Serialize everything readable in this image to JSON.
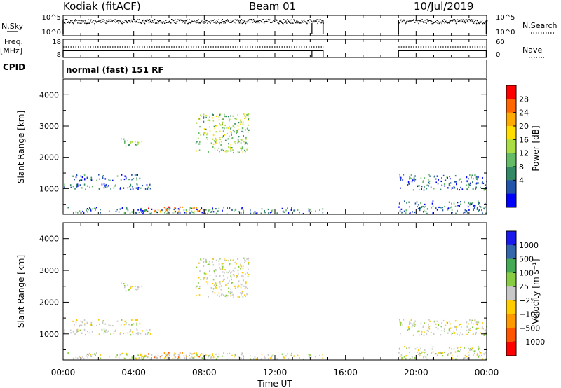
{
  "header": {
    "station": "Kodiak (fitACF)",
    "beam": "Beam 01",
    "date": "10/Jul/2019"
  },
  "status_panels": {
    "nsky": {
      "label": "N.Sky",
      "ticks": [
        "10^5",
        "10^0"
      ]
    },
    "nsearch": {
      "label": "N.Search",
      "ticks": [
        "10^5",
        "10^0"
      ]
    },
    "freq": {
      "label_line1": "Freq.",
      "label_line2": "[MHz]",
      "ticks": [
        "18",
        "8"
      ]
    },
    "nave": {
      "label": "Nave",
      "ticks": [
        "60",
        "0"
      ]
    },
    "cpid": {
      "label": "CPID",
      "text": "normal (fast) 151 RF"
    }
  },
  "chart_data": [
    {
      "type": "heatmap",
      "name": "power",
      "ylabel": "Slant Range [km]",
      "yticks": [
        "4000",
        "3000",
        "2000",
        "1000"
      ],
      "ylim": [
        180,
        4500
      ],
      "colorbar": {
        "label": "Power [dB]",
        "ticks": [
          "28",
          "24",
          "20",
          "16",
          "12",
          "8",
          "4"
        ],
        "colors": [
          "#ff0000",
          "#ff6600",
          "#ffaa00",
          "#ffdd00",
          "#aadd44",
          "#66bb66",
          "#338866",
          "#2255aa",
          "#0000ff"
        ]
      },
      "data_gaps_ut": [
        [
          14.75,
          19.0
        ]
      ],
      "echo_regions": [
        {
          "t0": 0.0,
          "t1": 4.5,
          "r0": 1250,
          "r1": 1450,
          "level": "weak"
        },
        {
          "t0": 0.0,
          "t1": 5.0,
          "r0": 950,
          "r1": 1150,
          "level": "weak"
        },
        {
          "t0": 3.2,
          "t1": 4.5,
          "r0": 2350,
          "r1": 2600,
          "level": "moderate"
        },
        {
          "t0": 7.5,
          "t1": 10.5,
          "r0": 2150,
          "r1": 3400,
          "level": "moderate"
        },
        {
          "t0": 4.5,
          "t1": 8.0,
          "r0": 250,
          "r1": 420,
          "level": "strong"
        },
        {
          "t0": 0.0,
          "t1": 14.75,
          "r0": 200,
          "r1": 400,
          "level": "weak"
        },
        {
          "t0": 19.0,
          "t1": 24.0,
          "r0": 950,
          "r1": 1450,
          "level": "weak"
        },
        {
          "t0": 19.0,
          "t1": 24.0,
          "r0": 200,
          "r1": 600,
          "level": "weak"
        }
      ]
    },
    {
      "type": "heatmap",
      "name": "velocity",
      "ylabel": "Slant Range [km]",
      "xlabel": "Time UT",
      "xticks": [
        "00:00",
        "04:00",
        "08:00",
        "12:00",
        "16:00",
        "20:00",
        "00:00"
      ],
      "yticks": [
        "4000",
        "3000",
        "2000",
        "1000"
      ],
      "ylim": [
        180,
        4500
      ],
      "colorbar": {
        "label": "Velocity [m s⁻¹]",
        "ticks": [
          "1000",
          "500",
          "100",
          "25",
          "−25",
          "−100",
          "−500",
          "−1000"
        ],
        "colors": [
          "#1a1aee",
          "#3366aa",
          "#44aa55",
          "#88cc44",
          "#c8c8c8",
          "#ffcc00",
          "#ff9900",
          "#ff5500",
          "#ff0000"
        ]
      },
      "data_gaps_ut": [
        [
          14.75,
          19.0
        ]
      ]
    }
  ]
}
